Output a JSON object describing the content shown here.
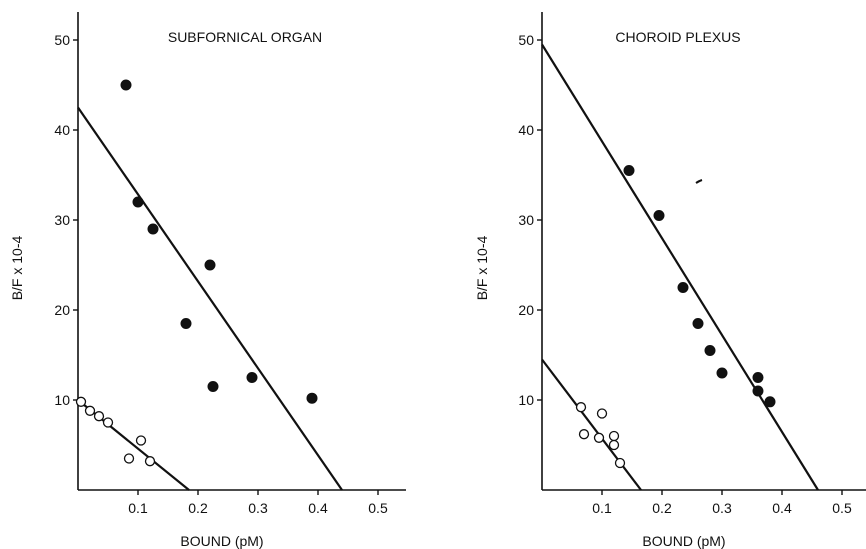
{
  "chart_data": [
    {
      "type": "scatter",
      "title": "SUBFORNICAL ORGAN",
      "xlabel": "BOUND (pM)",
      "ylabel": "B/F x 10-4",
      "xlim": [
        0,
        0.55
      ],
      "ylim": [
        0,
        53
      ],
      "xticks": [
        "0.1",
        "0.2",
        "0.3",
        "0.4",
        "0.5"
      ],
      "yticks": [
        "10",
        "20",
        "30",
        "40",
        "50"
      ],
      "grid": false,
      "series": [
        {
          "marker": "filled-circle",
          "x": [
            0.08,
            0.1,
            0.125,
            0.22,
            0.18,
            0.225,
            0.29,
            0.39
          ],
          "y": [
            45,
            32,
            29,
            25,
            18.5,
            11.5,
            12.5,
            10.2
          ]
        },
        {
          "marker": "open-circle",
          "x": [
            0.005,
            0.02,
            0.035,
            0.05,
            0.085,
            0.105,
            0.12
          ],
          "y": [
            9.8,
            8.8,
            8.2,
            7.5,
            3.5,
            5.5,
            3.2
          ]
        }
      ],
      "lines": [
        {
          "x": [
            0,
            0.44
          ],
          "y": [
            42.5,
            0
          ]
        },
        {
          "x": [
            0,
            0.185
          ],
          "y": [
            10,
            0
          ]
        }
      ]
    },
    {
      "type": "scatter",
      "title": "CHOROID PLEXUS",
      "xlabel": "BOUND (pM)",
      "ylabel": "B/F x 10-4",
      "xlim": [
        0,
        0.55
      ],
      "ylim": [
        0,
        53
      ],
      "xticks": [
        "0.1",
        "0.2",
        "0.3",
        "0.4",
        "0.5"
      ],
      "yticks": [
        "10",
        "20",
        "30",
        "40",
        "50"
      ],
      "grid": false,
      "series": [
        {
          "marker": "filled-circle",
          "x": [
            0.145,
            0.195,
            0.235,
            0.26,
            0.28,
            0.3,
            0.36,
            0.36,
            0.38
          ],
          "y": [
            35.5,
            30.5,
            22.5,
            18.5,
            15.5,
            13,
            12.5,
            11,
            9.8
          ]
        },
        {
          "marker": "open-circle",
          "x": [
            0.065,
            0.07,
            0.1,
            0.095,
            0.12,
            0.12,
            0.13
          ],
          "y": [
            9.2,
            6.2,
            8.5,
            5.8,
            6,
            5,
            3
          ]
        }
      ],
      "lines": [
        {
          "x": [
            0,
            0.46
          ],
          "y": [
            49.5,
            0
          ]
        },
        {
          "x": [
            0,
            0.165
          ],
          "y": [
            14.5,
            0
          ]
        }
      ]
    }
  ]
}
